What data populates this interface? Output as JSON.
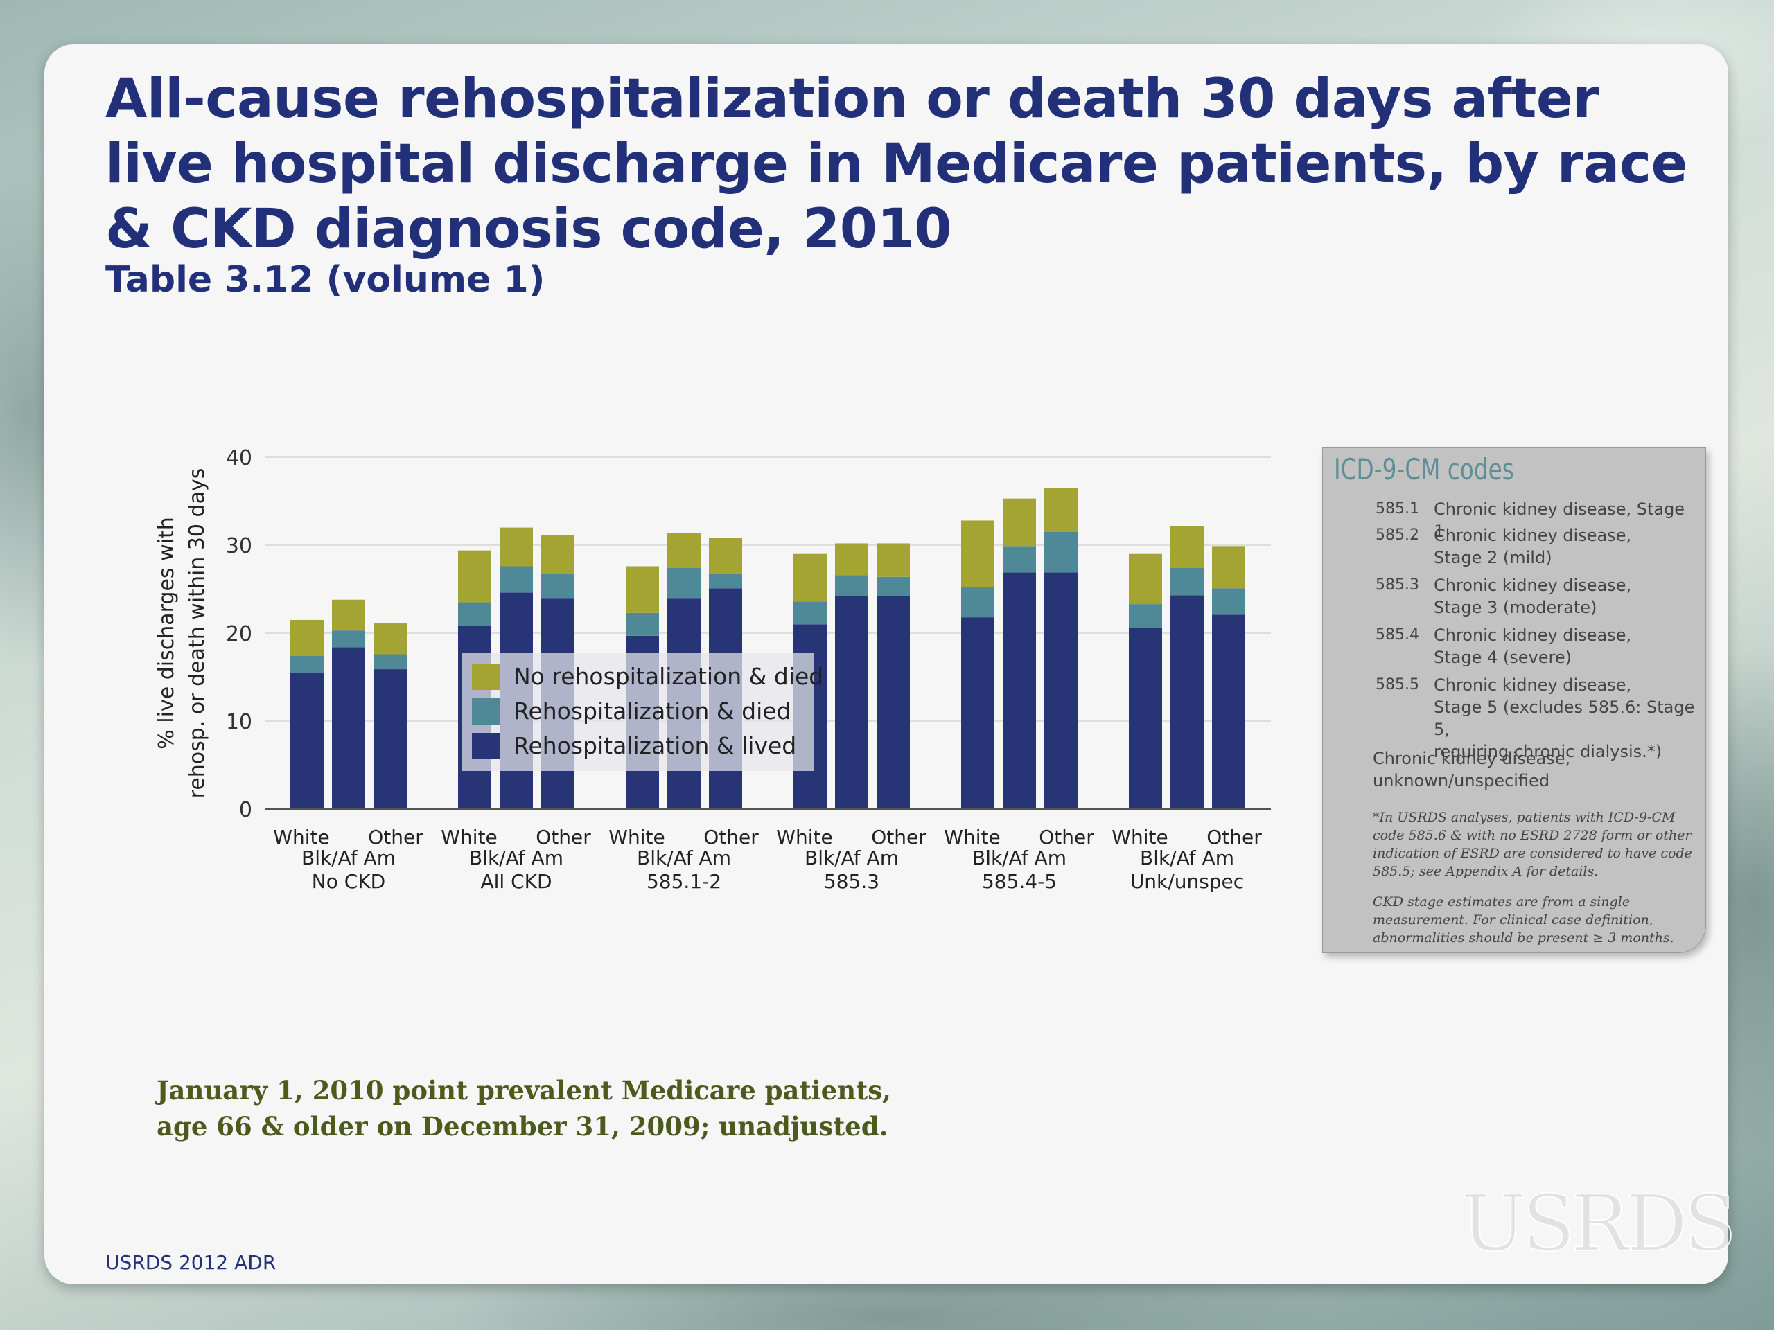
{
  "slide": {
    "title": "All-cause rehospitalization or death 30 days after live hospital discharge in Medicare patients, by race & CKD diagnosis code, 2010",
    "subtitle": "Table 3.12 (volume 1)",
    "footnote": "January 1, 2010 point prevalent Medicare patients, age 66 & older on December 31, 2009; unadjusted.",
    "footer_label": "USRDS 2012 ADR",
    "logo_text": "USRDS"
  },
  "icd_panel": {
    "title": "ICD-9-CM codes",
    "codes": [
      {
        "code": "585.1",
        "desc": [
          "Chronic kidney disease, Stage 1"
        ]
      },
      {
        "code": "585.2",
        "desc": [
          "Chronic kidney disease,",
          "Stage 2 (mild)"
        ]
      },
      {
        "code": "585.3",
        "desc": [
          "Chronic kidney disease,",
          "Stage 3 (moderate)"
        ]
      },
      {
        "code": "585.4",
        "desc": [
          "Chronic kidney disease,",
          "Stage 4 (severe)"
        ]
      },
      {
        "code": "585.5",
        "desc": [
          "Chronic kidney disease,",
          "Stage 5 (excludes 585.6: Stage 5,",
          "requiring chronic dialysis.*)"
        ]
      }
    ],
    "unknown": [
      "Chronic kidney disease,",
      "unknown/unspecified"
    ],
    "note1": [
      "*In USRDS analyses, patients with ICD-9-CM",
      "code 585.6 & with no ESRD 2728 form or other",
      "indication of ESRD are considered to have code",
      "585.5; see Appendix A for details."
    ],
    "note2": [
      "CKD stage estimates are from a single",
      "measurement. For clinical case definition,",
      "abnormalities should be present ≥ 3 months."
    ]
  },
  "chart_data": {
    "type": "bar",
    "stacked": true,
    "ylabel": [
      "% live discharges with",
      "rehosp. or death within 30 days"
    ],
    "ylim": [
      0,
      40
    ],
    "yticks": [
      0,
      10,
      20,
      30,
      40
    ],
    "grid": true,
    "legend_position": "inside-left",
    "groups": [
      "No CKD",
      "All CKD",
      "585.1-2",
      "585.3",
      "585.4-5",
      "Unk/unspec"
    ],
    "races": [
      "White",
      "Blk/Af Am",
      "Other"
    ],
    "series": [
      {
        "name": "Rehospitalization & lived",
        "color": "#273476",
        "values": [
          15.5,
          18.4,
          15.9,
          20.8,
          24.6,
          23.9,
          19.7,
          23.9,
          25.1,
          21.0,
          24.2,
          24.2,
          21.8,
          26.9,
          26.9,
          20.6,
          24.3,
          22.1
        ]
      },
      {
        "name": "Rehospitalization & died",
        "color": "#4f8998",
        "values": [
          1.9,
          1.9,
          1.7,
          2.7,
          3.0,
          2.8,
          2.6,
          3.5,
          1.7,
          2.6,
          2.4,
          2.2,
          3.4,
          3.0,
          4.6,
          2.7,
          3.1,
          3.0
        ]
      },
      {
        "name": "No rehospitalization & died",
        "color": "#a4a433",
        "values": [
          4.1,
          3.5,
          3.5,
          5.9,
          4.4,
          4.4,
          5.3,
          4.0,
          4.0,
          5.4,
          3.6,
          3.8,
          7.6,
          5.4,
          5.0,
          5.7,
          4.8,
          4.8
        ]
      }
    ]
  }
}
